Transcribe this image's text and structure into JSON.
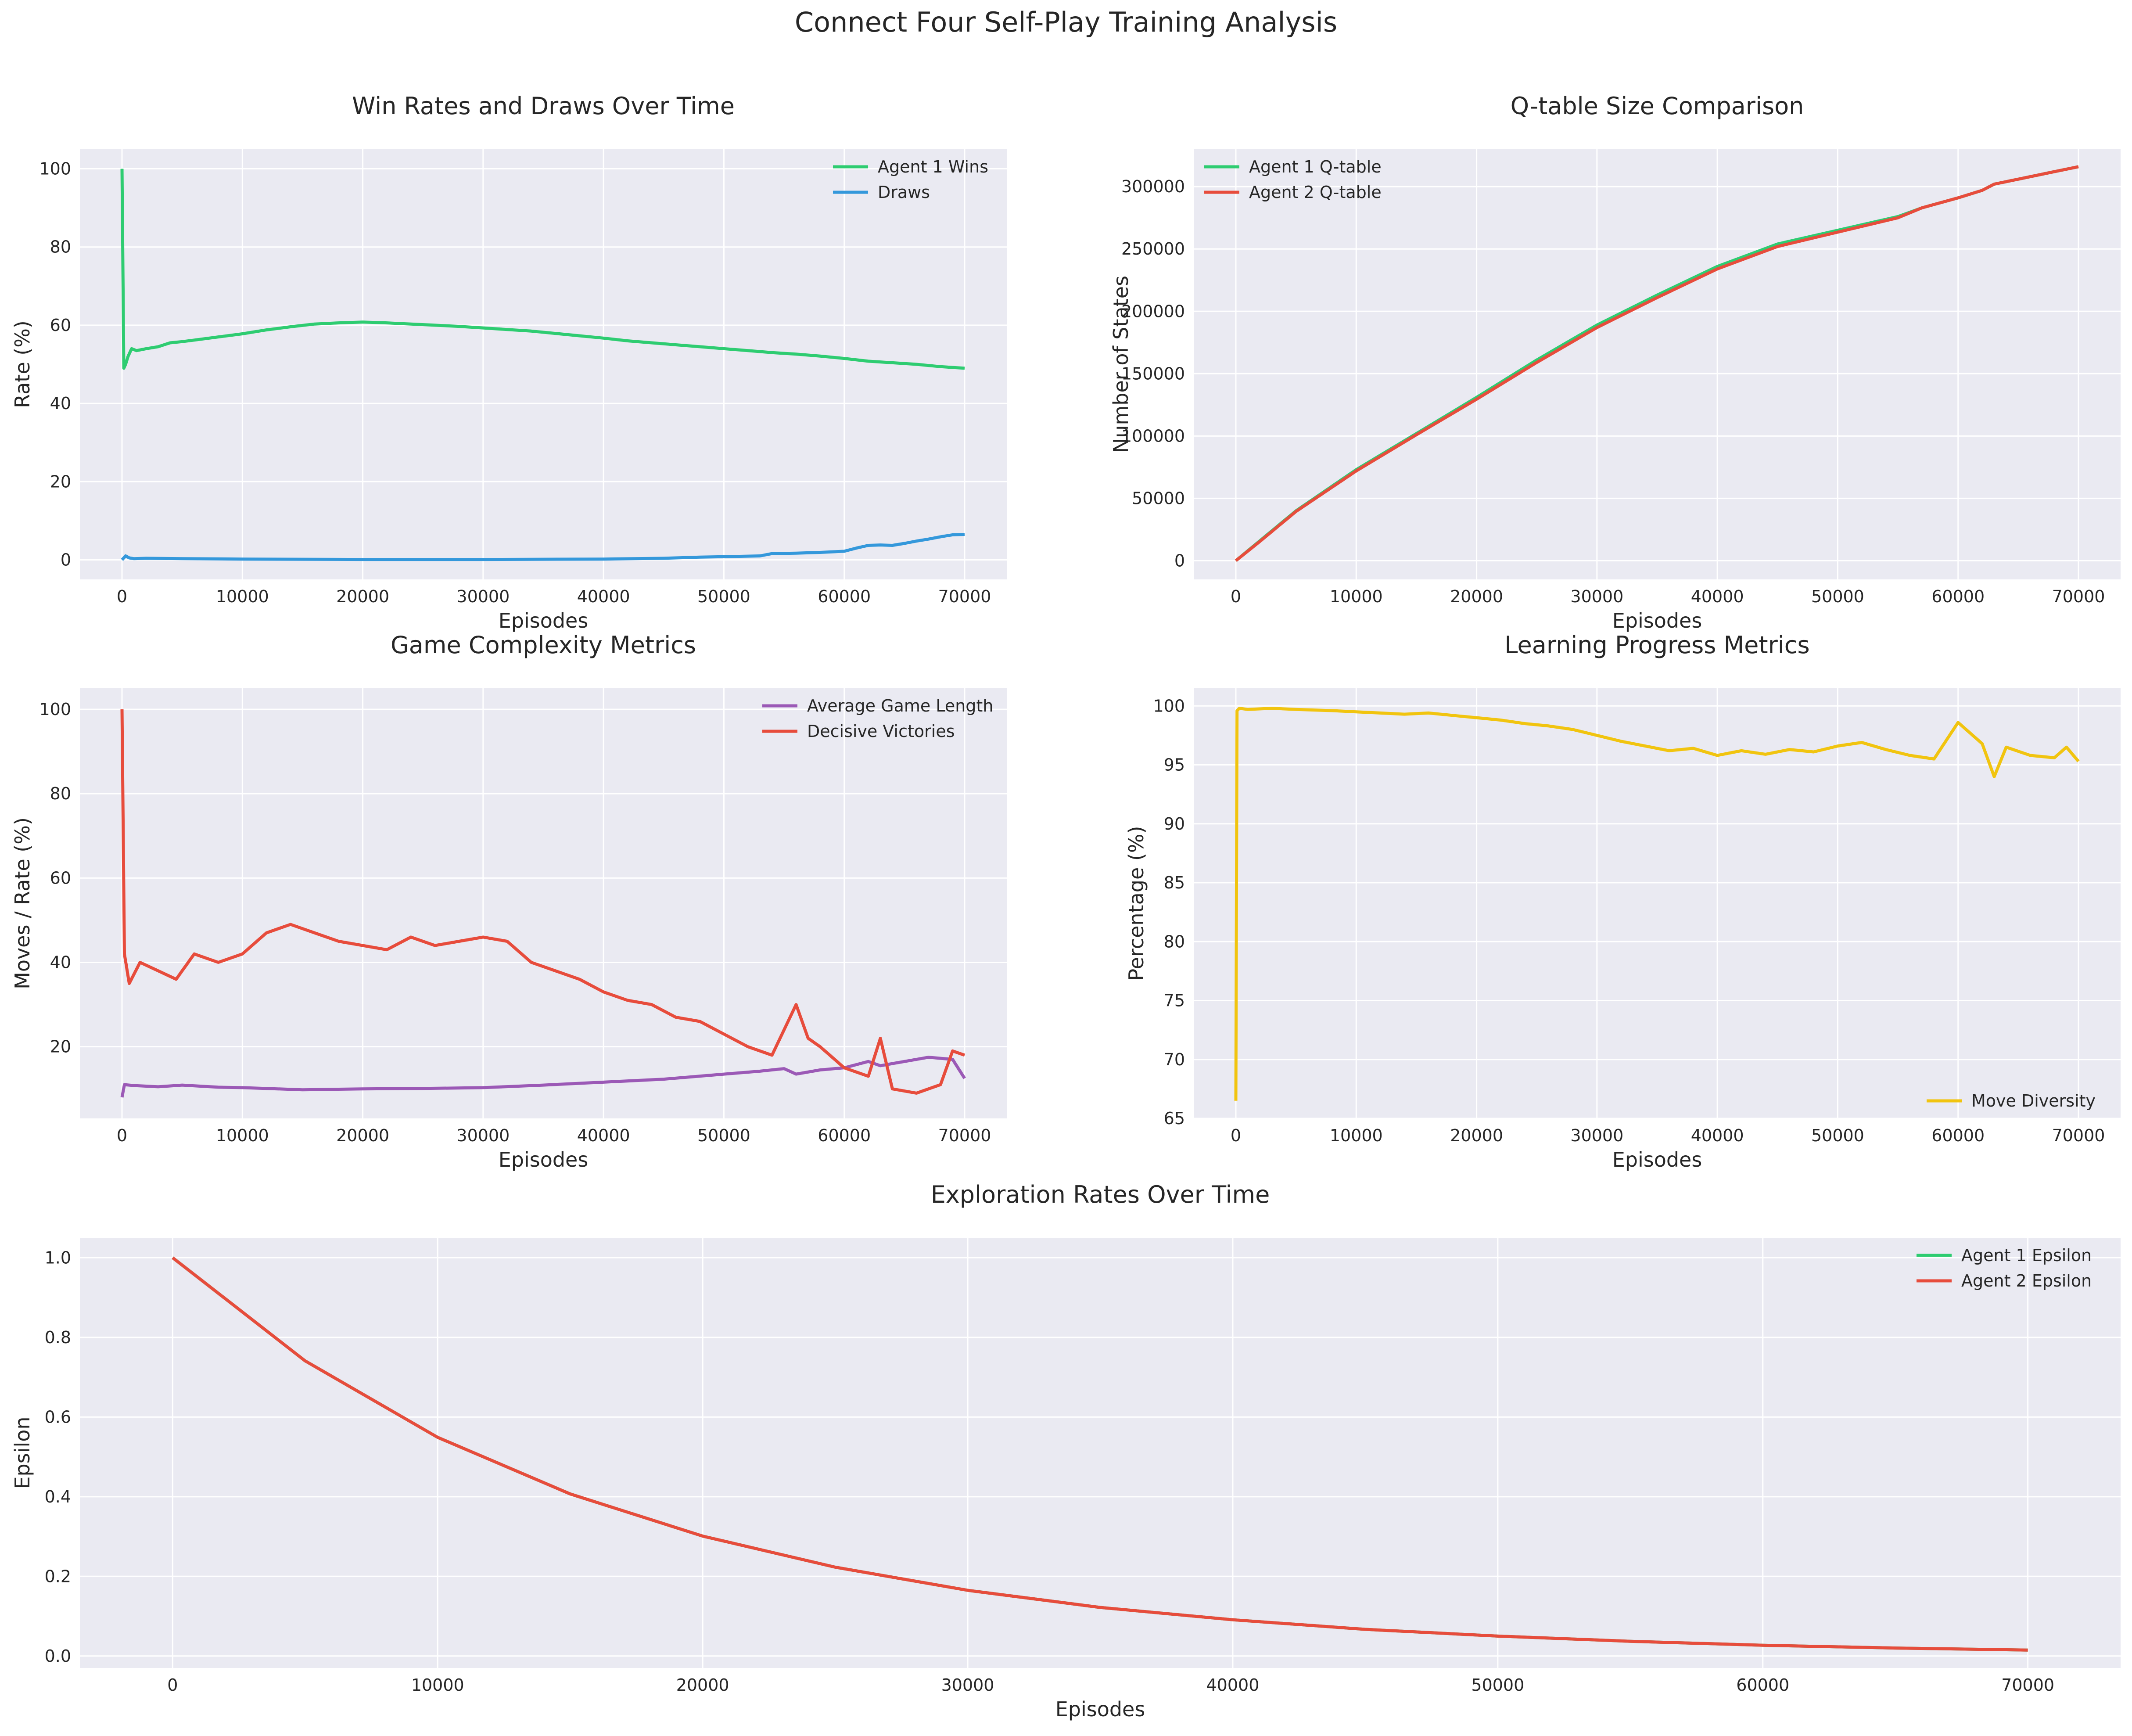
{
  "figure": {
    "title": "Connect Four Self-Play Training Analysis"
  },
  "chart_data": [
    {
      "id": "win_rates",
      "type": "line",
      "title": "Win Rates and Draws Over Time",
      "xlabel": "Episodes",
      "ylabel": "Rate (%)",
      "xlim": [
        -3500,
        73500
      ],
      "ylim": [
        -5,
        105
      ],
      "xticks": [
        0,
        10000,
        20000,
        30000,
        40000,
        50000,
        60000,
        70000
      ],
      "yticks": [
        0,
        20,
        40,
        60,
        80,
        100
      ],
      "grid": true,
      "legend": "upper-right",
      "series": [
        {
          "name": "Agent 1 Wins",
          "color": "#2ecc71",
          "x": [
            0,
            150,
            300,
            500,
            800,
            1200,
            2000,
            3000,
            4000,
            5000,
            6000,
            8000,
            10000,
            12000,
            14000,
            16000,
            18000,
            20000,
            22000,
            24000,
            26000,
            28000,
            30000,
            32000,
            34000,
            36000,
            38000,
            40000,
            42000,
            44000,
            46000,
            48000,
            50000,
            52000,
            54000,
            56000,
            58000,
            60000,
            62000,
            64000,
            66000,
            68000,
            70000
          ],
          "y": [
            100,
            49,
            50,
            52,
            54,
            53.5,
            54,
            54.5,
            55.5,
            55.8,
            56.2,
            57,
            57.8,
            58.8,
            59.6,
            60.3,
            60.6,
            60.8,
            60.6,
            60.3,
            60,
            59.7,
            59.3,
            58.9,
            58.5,
            57.9,
            57.3,
            56.7,
            56,
            55.5,
            55,
            54.5,
            54,
            53.5,
            53,
            52.6,
            52.1,
            51.5,
            50.8,
            50.4,
            50,
            49.4,
            49
          ]
        },
        {
          "name": "Draws",
          "color": "#3498db",
          "x": [
            0,
            300,
            600,
            1000,
            2000,
            5000,
            10000,
            20000,
            30000,
            40000,
            45000,
            48000,
            50000,
            53000,
            54000,
            56000,
            58000,
            60000,
            61000,
            62000,
            63000,
            64000,
            65000,
            66000,
            67000,
            68000,
            69000,
            70000
          ],
          "y": [
            0,
            1,
            0.5,
            0.3,
            0.4,
            0.3,
            0.2,
            0.1,
            0.1,
            0.2,
            0.4,
            0.7,
            0.8,
            1,
            1.6,
            1.7,
            1.9,
            2.2,
            3,
            3.7,
            3.8,
            3.7,
            4.2,
            4.8,
            5.3,
            5.9,
            6.4,
            6.5
          ]
        }
      ]
    },
    {
      "id": "qtable",
      "type": "line",
      "title": "Q-table Size Comparison",
      "xlabel": "Episodes",
      "ylabel": "Number of States",
      "xlim": [
        -3500,
        73500
      ],
      "ylim": [
        -15000,
        330000
      ],
      "xticks": [
        0,
        10000,
        20000,
        30000,
        40000,
        50000,
        60000,
        70000
      ],
      "yticks": [
        0,
        50000,
        100000,
        150000,
        200000,
        250000,
        300000
      ],
      "grid": true,
      "legend": "upper-left",
      "series": [
        {
          "name": "Agent 1 Q-table",
          "color": "#2ecc71",
          "x": [
            0,
            2000,
            5000,
            10000,
            15000,
            20000,
            25000,
            30000,
            35000,
            40000,
            45000,
            50000,
            55000,
            57000,
            60000,
            62000,
            63000,
            65000,
            68000,
            70000
          ],
          "y": [
            0,
            16000,
            40000,
            73000,
            102000,
            131000,
            161000,
            189000,
            213000,
            236000,
            254000,
            265000,
            276000,
            283000,
            291000,
            297000,
            302000,
            306000,
            312000,
            316000
          ]
        },
        {
          "name": "Agent 2 Q-table",
          "color": "#e74c3c",
          "x": [
            0,
            2000,
            5000,
            10000,
            15000,
            20000,
            25000,
            30000,
            35000,
            40000,
            45000,
            50000,
            55000,
            57000,
            60000,
            62000,
            63000,
            65000,
            68000,
            70000
          ],
          "y": [
            0,
            15500,
            39500,
            72000,
            101000,
            129500,
            159000,
            187000,
            211000,
            234000,
            252000,
            263500,
            275000,
            283000,
            291000,
            297000,
            302000,
            306000,
            312000,
            316000
          ]
        }
      ]
    },
    {
      "id": "complexity",
      "type": "line",
      "title": "Game Complexity Metrics",
      "xlabel": "Episodes",
      "ylabel": "Moves / Rate (%)",
      "xlim": [
        -3500,
        73500
      ],
      "ylim": [
        3,
        105
      ],
      "xticks": [
        0,
        10000,
        20000,
        30000,
        40000,
        50000,
        60000,
        70000
      ],
      "yticks": [
        20,
        40,
        60,
        80,
        100
      ],
      "grid": true,
      "legend": "upper-right",
      "series": [
        {
          "name": "Average Game Length",
          "color": "#9b59b6",
          "x": [
            0,
            200,
            1000,
            3000,
            5000,
            8000,
            10000,
            15000,
            20000,
            25000,
            30000,
            35000,
            40000,
            45000,
            50000,
            53000,
            55000,
            56000,
            58000,
            60000,
            62000,
            63000,
            65000,
            67000,
            69000,
            70000
          ],
          "y": [
            8,
            11,
            10.8,
            10.5,
            10.9,
            10.4,
            10.3,
            9.8,
            10,
            10.1,
            10.3,
            10.9,
            11.6,
            12.3,
            13.5,
            14.2,
            14.8,
            13.5,
            14.5,
            15,
            16.5,
            15.5,
            16.5,
            17.5,
            17,
            12.5
          ]
        },
        {
          "name": "Decisive Victories",
          "color": "#e74c3c",
          "x": [
            0,
            200,
            600,
            1500,
            3000,
            4500,
            6000,
            8000,
            10000,
            12000,
            14000,
            16000,
            18000,
            20000,
            22000,
            24000,
            26000,
            28000,
            30000,
            32000,
            34000,
            36000,
            38000,
            40000,
            42000,
            44000,
            46000,
            48000,
            50000,
            52000,
            54000,
            56000,
            57000,
            58000,
            60000,
            62000,
            63000,
            64000,
            66000,
            68000,
            69000,
            70000
          ],
          "y": [
            100,
            42,
            35,
            40,
            38,
            36,
            42,
            40,
            42,
            47,
            49,
            47,
            45,
            44,
            43,
            46,
            44,
            45,
            46,
            45,
            40,
            38,
            36,
            33,
            31,
            30,
            27,
            26,
            23,
            20,
            18,
            30,
            22,
            20,
            15,
            13,
            22,
            10,
            9,
            11,
            19,
            18
          ]
        }
      ]
    },
    {
      "id": "learning",
      "type": "line",
      "title": "Learning Progress Metrics",
      "xlabel": "Episodes",
      "ylabel": "Percentage (%)",
      "xlim": [
        -3500,
        73500
      ],
      "ylim": [
        65,
        101.5
      ],
      "xticks": [
        0,
        10000,
        20000,
        30000,
        40000,
        50000,
        60000,
        70000
      ],
      "yticks": [
        65,
        70,
        75,
        80,
        85,
        90,
        95,
        100
      ],
      "grid": true,
      "legend": "lower-right",
      "series": [
        {
          "name": "Move Diversity",
          "color": "#f1c40f",
          "x": [
            0,
            100,
            300,
            1000,
            3000,
            5000,
            8000,
            10000,
            12000,
            14000,
            16000,
            18000,
            20000,
            22000,
            24000,
            26000,
            28000,
            30000,
            32000,
            34000,
            36000,
            38000,
            40000,
            42000,
            44000,
            46000,
            48000,
            50000,
            52000,
            54000,
            56000,
            58000,
            60000,
            62000,
            63000,
            64000,
            66000,
            68000,
            69000,
            70000
          ],
          "y": [
            66.5,
            99.6,
            99.8,
            99.7,
            99.8,
            99.7,
            99.6,
            99.5,
            99.4,
            99.3,
            99.4,
            99.2,
            99,
            98.8,
            98.5,
            98.3,
            98,
            97.5,
            97,
            96.6,
            96.2,
            96.4,
            95.8,
            96.2,
            95.9,
            96.3,
            96.1,
            96.6,
            96.9,
            96.3,
            95.8,
            95.5,
            98.6,
            96.8,
            94,
            96.5,
            95.8,
            95.6,
            96.5,
            95.3
          ]
        }
      ]
    },
    {
      "id": "epsilon",
      "type": "line",
      "title": "Exploration Rates Over Time",
      "xlabel": "Episodes",
      "ylabel": "Epsilon",
      "xlim": [
        -3500,
        73500
      ],
      "ylim": [
        -0.03,
        1.05
      ],
      "xticks": [
        0,
        10000,
        20000,
        30000,
        40000,
        50000,
        60000,
        70000
      ],
      "yticks": [
        0.0,
        0.2,
        0.4,
        0.6,
        0.8,
        1.0
      ],
      "grid": true,
      "legend": "upper-right",
      "series": [
        {
          "name": "Agent 1 Epsilon",
          "color": "#2ecc71",
          "x": [
            0,
            5000,
            10000,
            15000,
            20000,
            25000,
            30000,
            35000,
            40000,
            45000,
            50000,
            55000,
            60000,
            65000,
            70000
          ],
          "y": [
            1.0,
            0.741,
            0.549,
            0.407,
            0.301,
            0.223,
            0.165,
            0.122,
            0.091,
            0.067,
            0.05,
            0.037,
            0.027,
            0.02,
            0.015
          ]
        },
        {
          "name": "Agent 2 Epsilon",
          "color": "#e74c3c",
          "x": [
            0,
            5000,
            10000,
            15000,
            20000,
            25000,
            30000,
            35000,
            40000,
            45000,
            50000,
            55000,
            60000,
            65000,
            70000
          ],
          "y": [
            1.0,
            0.741,
            0.549,
            0.407,
            0.301,
            0.223,
            0.165,
            0.122,
            0.091,
            0.067,
            0.05,
            0.037,
            0.027,
            0.02,
            0.015
          ]
        }
      ]
    }
  ]
}
